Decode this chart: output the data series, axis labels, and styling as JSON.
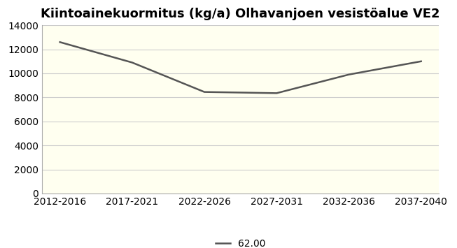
{
  "title": "Kiintoainekuormitus (kg/a) Olhavanjoen vesistöalue VE2",
  "categories": [
    "2012-2016",
    "2017-2021",
    "2022-2026",
    "2027-2031",
    "2032-2036",
    "2037-2040"
  ],
  "values": [
    12600,
    10900,
    8450,
    8350,
    9900,
    11000
  ],
  "line_color": "#555555",
  "line_width": 1.8,
  "marker": null,
  "background_color": "#ffffff",
  "plot_bg_color": "#fffff0",
  "ylim": [
    0,
    14000
  ],
  "yticks": [
    0,
    2000,
    4000,
    6000,
    8000,
    10000,
    12000,
    14000
  ],
  "legend_label": "62.00",
  "title_fontsize": 13,
  "tick_fontsize": 10,
  "legend_fontsize": 10,
  "grid_color": "#cccccc",
  "border_color": "#aaaaaa"
}
